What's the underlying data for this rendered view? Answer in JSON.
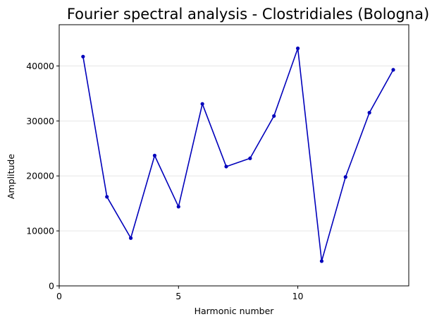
{
  "chart_data": {
    "type": "line",
    "title": "Fourier spectral analysis - Clostridiales (Bologna)",
    "xlabel": "Harmonic number",
    "ylabel": "Amplitude",
    "xlim": [
      0,
      14.65
    ],
    "ylim": [
      0,
      47500
    ],
    "xticks": [
      0,
      5,
      10
    ],
    "yticks": [
      0,
      10000,
      20000,
      30000,
      40000
    ],
    "grid": "y-only",
    "colors": {
      "line": "#0000bb",
      "grid": "#e6e6e6",
      "axes": "#000000"
    },
    "series": [
      {
        "x": [
          1,
          2,
          3,
          4,
          5,
          6,
          7,
          8,
          9,
          10,
          11,
          12,
          13,
          14
        ],
        "values": [
          41700,
          16200,
          8700,
          23700,
          14400,
          33100,
          21700,
          23200,
          30900,
          43200,
          4500,
          19800,
          31500,
          39300
        ]
      }
    ]
  }
}
